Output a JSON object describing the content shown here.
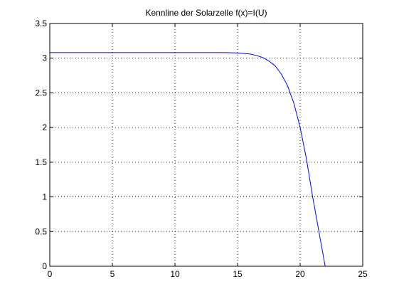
{
  "chart_data": {
    "type": "line",
    "title": "Kennline der Solarzelle f(x)=I(U)",
    "xlabel": "",
    "ylabel": "",
    "xlim": [
      0,
      25
    ],
    "ylim": [
      0,
      3.5
    ],
    "xticks": [
      0,
      5,
      10,
      15,
      20,
      25
    ],
    "yticks": [
      0,
      0.5,
      1,
      1.5,
      2,
      2.5,
      3,
      3.5
    ],
    "xtick_labels": [
      "0",
      "5",
      "10",
      "15",
      "20",
      "25"
    ],
    "ytick_labels": [
      "0",
      "0.5",
      "1",
      "1.5",
      "2",
      "2.5",
      "3",
      "3.5"
    ],
    "grid": true,
    "series": [
      {
        "color": "#0000ff",
        "x": [
          0,
          5,
          10,
          14,
          15,
          16,
          16.5,
          17,
          17.5,
          18,
          18.5,
          19,
          19.5,
          20,
          20.5,
          21,
          21.5,
          22
        ],
        "y": [
          3.08,
          3.08,
          3.08,
          3.08,
          3.075,
          3.06,
          3.04,
          3.01,
          2.96,
          2.89,
          2.77,
          2.6,
          2.35,
          2.0,
          1.55,
          1.0,
          0.5,
          0.0
        ]
      }
    ]
  }
}
